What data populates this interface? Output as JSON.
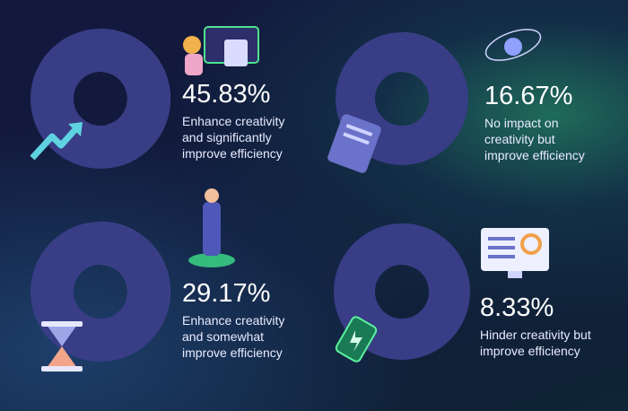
{
  "chart_data": [
    {
      "type": "pie",
      "categories": [
        "Enhance creativity and significantly improve efficiency"
      ],
      "values": [
        45.83
      ],
      "value_labels": [
        "45.83%"
      ],
      "color": "#7b84c9"
    },
    {
      "type": "pie",
      "categories": [
        "No impact on creativity but improve efficiency"
      ],
      "values": [
        16.67
      ],
      "value_labels": [
        "16.67%"
      ],
      "color": "#7b84c9"
    },
    {
      "type": "pie",
      "categories": [
        "Enhance creativity and somewhat improve efficiency"
      ],
      "values": [
        29.17
      ],
      "value_labels": [
        "29.17%"
      ],
      "color": "#7b84c9"
    },
    {
      "type": "pie",
      "categories": [
        "Hinder creativity but improve efficiency"
      ],
      "values": [
        8.33
      ],
      "value_labels": [
        "8.33%"
      ],
      "color": "#7b84c9"
    }
  ]
}
